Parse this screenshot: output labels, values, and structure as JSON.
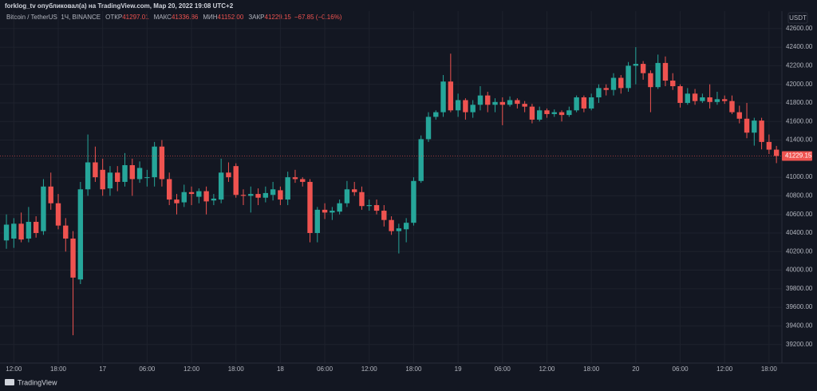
{
  "header": {
    "text": "forklog_tv опубликовал(а) на TradingView.com, Мар 20, 2022 19:08 UTC+2"
  },
  "chart_data": {
    "type": "candlestick",
    "legend": {
      "symbol": "Bitcoin / TetherUS, 1Ч, BINANCE",
      "open_label": "ОТКР",
      "open": "41297.01",
      "high_label": "МАКС",
      "high": "41336.86",
      "low_label": "МИН",
      "low": "41152.00",
      "close_label": "ЗАКР",
      "close": "41229.15",
      "change": "−67.85 (−0.16%)"
    },
    "currency": "USDT",
    "categories": [
      null,
      "12:00",
      null,
      null,
      null,
      null,
      null,
      "18:00",
      null,
      null,
      null,
      null,
      null,
      "17",
      null,
      null,
      null,
      null,
      null,
      "06:00",
      null,
      null,
      null,
      null,
      null,
      "12:00",
      null,
      null,
      null,
      null,
      null,
      "18:00",
      null,
      null,
      null,
      null,
      null,
      "18",
      null,
      null,
      null,
      null,
      null,
      "06:00",
      null,
      null,
      null,
      null,
      null,
      "12:00",
      null,
      null,
      null,
      null,
      null,
      "18:00",
      null,
      null,
      null,
      null,
      null,
      "19",
      null,
      null,
      null,
      null,
      null,
      "06:00",
      null,
      null,
      null,
      null,
      null,
      "12:00",
      null,
      null,
      null,
      null,
      null,
      "18:00",
      null,
      null,
      null,
      null,
      null,
      "20",
      null,
      null,
      null,
      null,
      null,
      "06:00",
      null,
      null,
      null,
      null,
      null,
      "12:00",
      null,
      null,
      null,
      null,
      null,
      "18:00",
      null
    ],
    "open": [
      40320,
      40340,
      40500,
      40340,
      40520,
      40420,
      40900,
      40720,
      40480,
      40340,
      39900,
      40870,
      41160,
      41080,
      40880,
      41050,
      40950,
      41130,
      40980,
      41000,
      41000,
      41330,
      40980,
      40760,
      40730,
      40840,
      40790,
      40850,
      40750,
      40760,
      41050,
      41120,
      40810,
      40800,
      40820,
      40780,
      40810,
      40860,
      40760,
      41000,
      40980,
      40950,
      40400,
      40650,
      40620,
      40630,
      40720,
      40870,
      40840,
      40690,
      40700,
      40640,
      40540,
      40420,
      40440,
      40510,
      40960,
      41410,
      41650,
      41700,
      42030,
      41720,
      41830,
      41700,
      41780,
      41880,
      41780,
      41810,
      41780,
      41830,
      41790,
      41760,
      41620,
      41720,
      41680,
      41700,
      41670,
      41720,
      41860,
      41740,
      41860,
      41960,
      41940,
      42070,
      41960,
      42200,
      42220,
      42120,
      41970,
      42230,
      42040,
      41980,
      41800,
      41900,
      41820,
      41860,
      41810,
      41840,
      41820,
      41700,
      41630,
      41480,
      41610,
      41380,
      41297.01
    ],
    "high": [
      40600,
      40560,
      40620,
      40680,
      40580,
      40980,
      41050,
      40820,
      40560,
      40420,
      40950,
      41460,
      41330,
      41200,
      41120,
      41120,
      41260,
      41200,
      41170,
      41080,
      41380,
      41400,
      41050,
      40820,
      40920,
      40900,
      40880,
      40900,
      40820,
      41200,
      41160,
      41150,
      40870,
      40900,
      40880,
      40900,
      40950,
      40900,
      41060,
      41080,
      41000,
      40980,
      40680,
      40720,
      40680,
      40760,
      40960,
      40950,
      40900,
      40760,
      40760,
      40700,
      40580,
      40500,
      40560,
      41000,
      41450,
      41700,
      41720,
      42100,
      42330,
      41900,
      41850,
      41830,
      41980,
      41920,
      41850,
      41860,
      41870,
      41850,
      41820,
      41790,
      41760,
      41740,
      41730,
      41720,
      41760,
      41880,
      41880,
      41900,
      42000,
      42000,
      42120,
      42100,
      42240,
      42400,
      42250,
      42150,
      42320,
      42300,
      42120,
      42000,
      41960,
      41950,
      41900,
      42000,
      41920,
      41880,
      41880,
      41770,
      41800,
      41640,
      41640,
      41460,
      41336.86
    ],
    "low": [
      40230,
      40240,
      40300,
      40300,
      40350,
      40380,
      40650,
      40440,
      40200,
      39300,
      39850,
      40800,
      40950,
      40800,
      40800,
      40850,
      40900,
      40800,
      40940,
      40900,
      40900,
      40900,
      40700,
      40600,
      40680,
      40700,
      40720,
      40600,
      40700,
      40720,
      40950,
      40780,
      40700,
      40620,
      40700,
      40730,
      40750,
      40700,
      40700,
      40940,
      40900,
      40300,
      40300,
      40550,
      40540,
      40600,
      40680,
      40800,
      40650,
      40640,
      40600,
      40470,
      40380,
      40180,
      40300,
      40480,
      40940,
      41380,
      41620,
      41650,
      41700,
      41650,
      41620,
      41640,
      41720,
      41700,
      41700,
      41560,
      41760,
      41740,
      41700,
      41580,
      41600,
      41640,
      41650,
      41600,
      41650,
      41700,
      41700,
      41720,
      41800,
      41880,
      41880,
      41900,
      41920,
      42000,
      42050,
      41700,
      41950,
      41980,
      41940,
      41750,
      41780,
      41780,
      41800,
      41740,
      41780,
      41790,
      41680,
      41580,
      41420,
      41340,
      41300,
      41250,
      41152
    ],
    "close": [
      40490,
      40500,
      40330,
      40520,
      40400,
      40900,
      40720,
      40480,
      40340,
      39920,
      40870,
      41160,
      41000,
      40870,
      41050,
      40950,
      41130,
      40980,
      41100,
      41000,
      41330,
      40980,
      40760,
      40720,
      40840,
      40820,
      40850,
      40740,
      40770,
      41050,
      41000,
      40810,
      40800,
      40820,
      40780,
      40830,
      40870,
      40760,
      41000,
      40980,
      40950,
      40400,
      40650,
      40620,
      40640,
      40720,
      40870,
      40840,
      40690,
      40700,
      40640,
      40540,
      40420,
      40450,
      40510,
      40960,
      41410,
      41650,
      41700,
      42030,
      41720,
      41830,
      41700,
      41780,
      41880,
      41780,
      41810,
      41780,
      41830,
      41790,
      41760,
      41620,
      41720,
      41680,
      41700,
      41670,
      41720,
      41860,
      41740,
      41860,
      41960,
      41940,
      42070,
      41960,
      42200,
      42220,
      42120,
      41970,
      42230,
      42040,
      41980,
      41800,
      41900,
      41820,
      41860,
      41810,
      41840,
      41820,
      41700,
      41630,
      41480,
      41610,
      41380,
      41297.01,
      41229.15
    ],
    "up_color": "#26a69a",
    "down_color": "#ef5350",
    "ylim": [
      39000,
      42650
    ],
    "yticks": [
      {
        "value": 39200,
        "label": "39200.00"
      },
      {
        "value": 39400,
        "label": "39400.00"
      },
      {
        "value": 39600,
        "label": "39600.00"
      },
      {
        "value": 39800,
        "label": "39800.00"
      },
      {
        "value": 40000,
        "label": "40000.00"
      },
      {
        "value": 40200,
        "label": "40200.00"
      },
      {
        "value": 40400,
        "label": "40400.00"
      },
      {
        "value": 40600,
        "label": "40600.00"
      },
      {
        "value": 40800,
        "label": "40800.00"
      },
      {
        "value": 41000,
        "label": "41000.00"
      },
      {
        "value": 41200,
        "label": "41200.00"
      },
      {
        "value": 41400,
        "label": "41400.00"
      },
      {
        "value": 41600,
        "label": "41600.00"
      },
      {
        "value": 41800,
        "label": "41800.00"
      },
      {
        "value": 42000,
        "label": "42000.00"
      },
      {
        "value": 42200,
        "label": "42200.00"
      },
      {
        "value": 42400,
        "label": "42400.00"
      },
      {
        "value": 42600,
        "label": "42600.00"
      }
    ],
    "grid": true,
    "last_price": 41229.15
  },
  "footer": {
    "brand": "TradingView"
  }
}
